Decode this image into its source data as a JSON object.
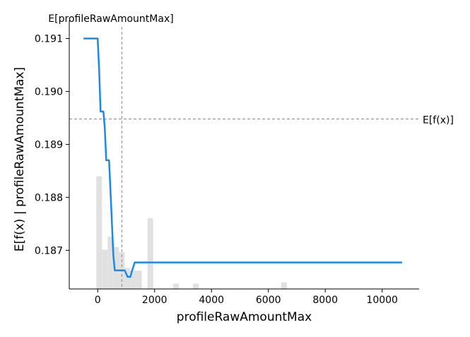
{
  "chart_data": {
    "type": "line",
    "xlabel": "profileRawAmountMax",
    "ylabel": "E[f(x) | profileRawAmountMax]",
    "xlim": [
      -1000,
      11300
    ],
    "ylim": [
      0.18627,
      0.19122
    ],
    "x_ticks": [
      0,
      2000,
      4000,
      6000,
      8000,
      10000
    ],
    "x_tick_labels": [
      "0",
      "2000",
      "4000",
      "6000",
      "8000",
      "10000"
    ],
    "y_ticks": [
      0.187,
      0.188,
      0.189,
      0.19,
      0.191
    ],
    "y_tick_labels": [
      "0.187",
      "0.188",
      "0.189",
      "0.190",
      "0.191"
    ],
    "grid": false,
    "expected_value": {
      "label": "E[f(x)]",
      "y": 0.18948
    },
    "expected_feature": {
      "label": "E[profileRawAmountMax]",
      "x": 850
    },
    "series": [
      {
        "color": "#1e88e5",
        "x": [
          -500,
          -100,
          0,
          50,
          100,
          150,
          200,
          250,
          300,
          350,
          400,
          450,
          500,
          550,
          600,
          700,
          750,
          850,
          950,
          1050,
          1150,
          1200,
          1300,
          1500,
          2000,
          4000,
          6000,
          8000,
          10000,
          10700
        ],
        "y": [
          0.191,
          0.191,
          0.191,
          0.1904,
          0.18962,
          0.18962,
          0.18962,
          0.1893,
          0.1887,
          0.1887,
          0.1887,
          0.1881,
          0.1875,
          0.1869,
          0.18662,
          0.18662,
          0.18662,
          0.18662,
          0.18662,
          0.1865,
          0.1865,
          0.1866,
          0.18677,
          0.18677,
          0.18677,
          0.18677,
          0.18677,
          0.18677,
          0.18677,
          0.18677
        ]
      }
    ],
    "histogram": {
      "color": "#e1e1e1",
      "bin_width": 200,
      "bin_starts": [
        -50,
        150,
        350,
        550,
        750,
        950,
        1150,
        1350,
        1750,
        2650,
        3350,
        6450
      ],
      "relative_heights": [
        0.43,
        0.15,
        0.2,
        0.16,
        0.14,
        0.08,
        0.07,
        0.07,
        0.27,
        0.02,
        0.02,
        0.025
      ]
    }
  }
}
